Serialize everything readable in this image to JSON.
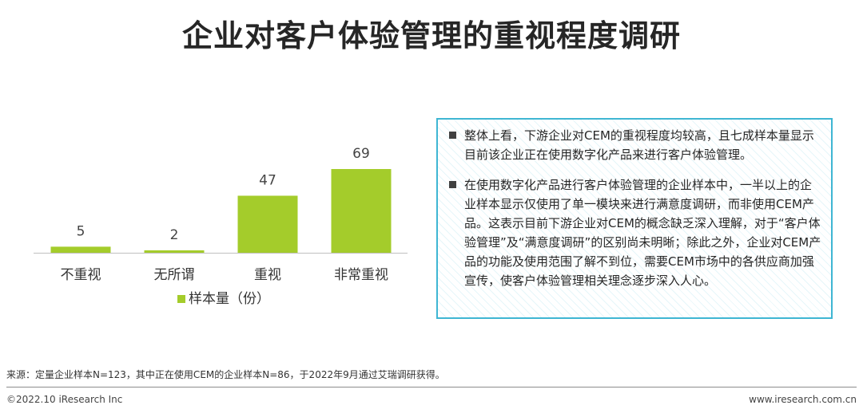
{
  "page": {
    "title": "企业对客户体验管理的重视程度调研",
    "source": "来源：定量企业样本N=123，其中正在使用CEM的企业样本N=86，于2022年9月通过艾瑞调研获得。",
    "copyright": "©2022.10 iResearch Inc",
    "website": "www.iresearch.com.cn"
  },
  "notes": [
    "整体上看，下游企业对CEM的重视程度均较高，且七成样本量显示目前该企业正在使用数字化产品来进行客户体验管理。",
    "在使用数字化产品进行客户体验管理的企业样本中，一半以上的企业样本显示仅使用了单一模块来进行满意度调研，而非使用CEM产品。这表示目前下游企业对CEM的概念缺乏深入理解，对于“客户体验管理”及“满意度调研”的区别尚未明晰；除此之外，企业对CEM产品的功能及使用范围了解不到位，需要CEM市场中的各供应商加强宣传，使客户体验管理相关理念逐步深入人心。"
  ],
  "colors": {
    "bar": "#a4cc2b",
    "axis": "#bfbfbf",
    "box_border": "#3fb6d3"
  },
  "chart_data": {
    "type": "bar",
    "categories": [
      "不重视",
      "无所谓",
      "重视",
      "非常重视"
    ],
    "series": [
      {
        "name": "样本量（份）",
        "values": [
          5,
          2,
          47,
          69
        ]
      }
    ],
    "ylim": [
      0,
      69
    ],
    "grid": false,
    "legend": "bottom-center",
    "data_labels": true
  }
}
